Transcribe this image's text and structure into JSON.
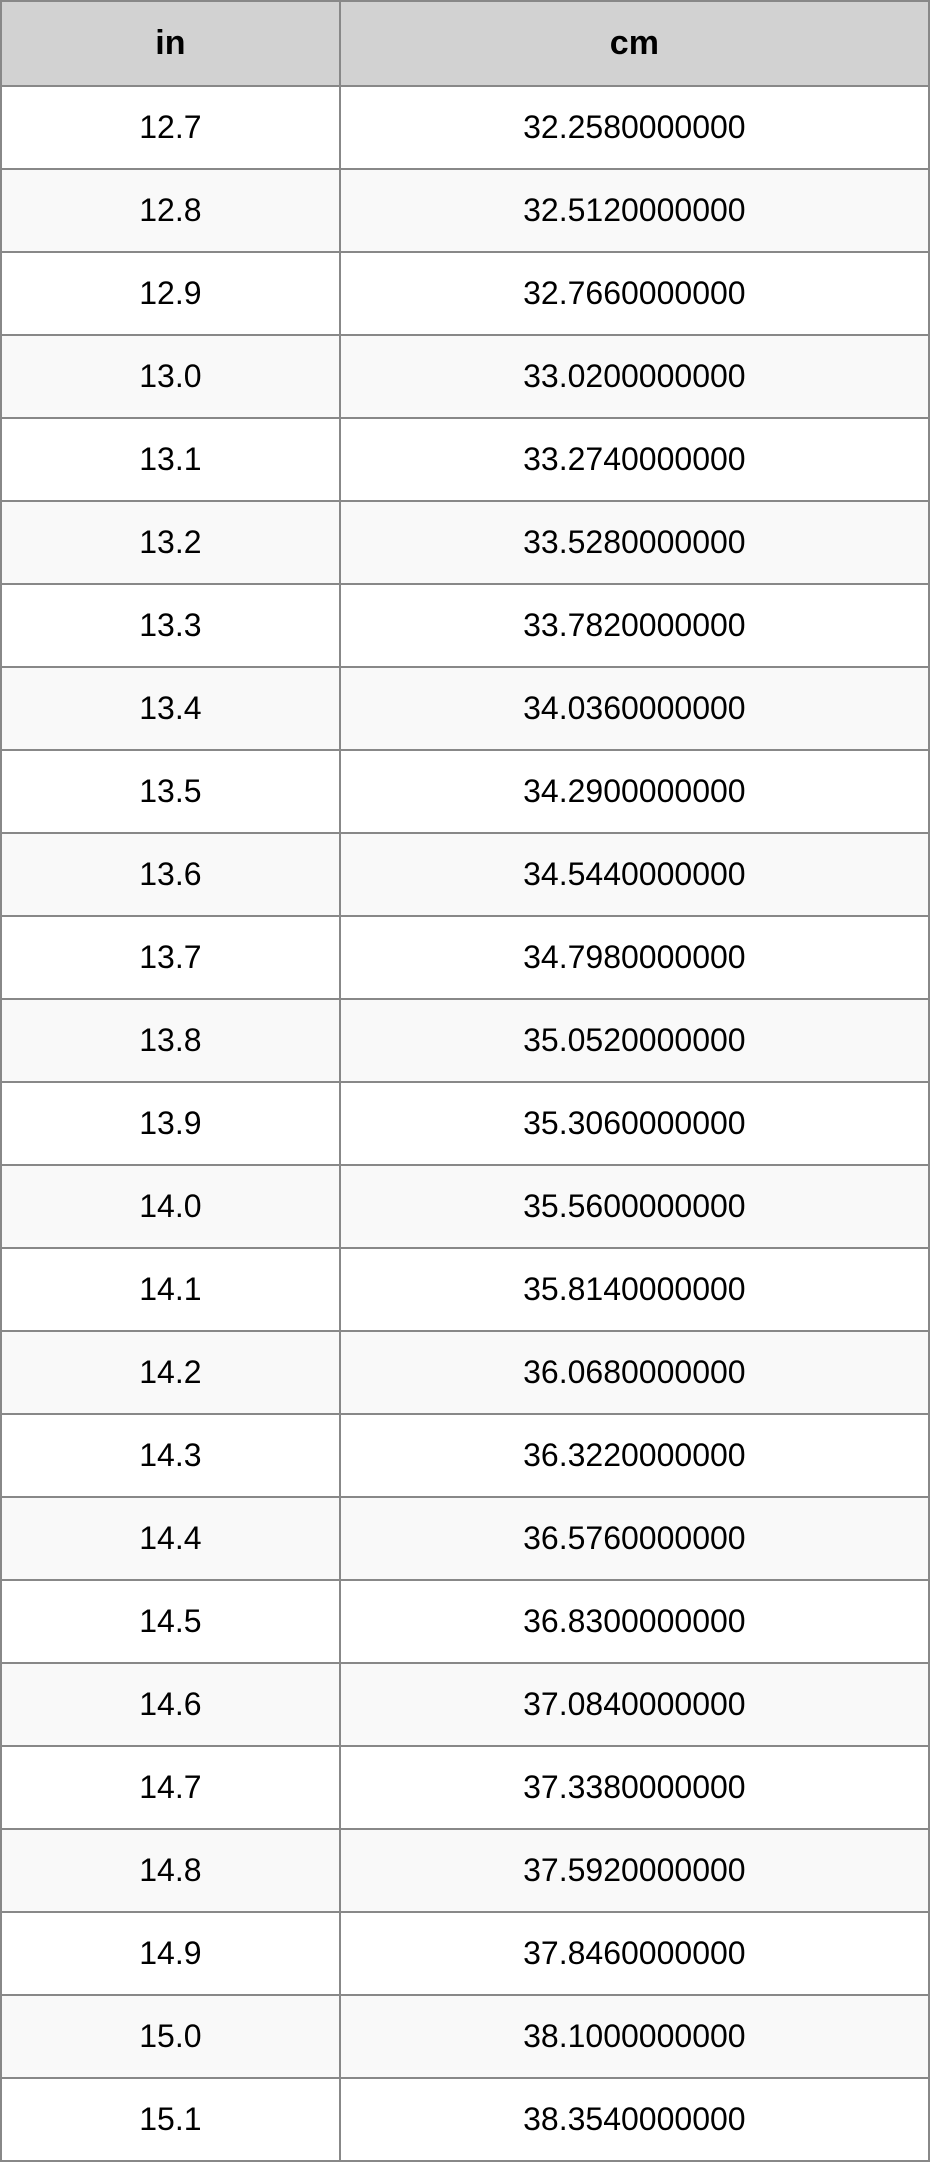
{
  "conversion_table": {
    "type": "table",
    "columns": [
      {
        "header": "in",
        "width_pct": 36.5,
        "align": "center"
      },
      {
        "header": "cm",
        "width_pct": 63.5,
        "align": "center"
      }
    ],
    "header_bg": "#d2d2d2",
    "header_font_size": 34,
    "header_font_weight": "bold",
    "body_font_size": 32,
    "text_color": "#000000",
    "border_color": "#888888",
    "border_width": 2,
    "row_bg_odd": "#ffffff",
    "row_bg_even": "#f9f9f9",
    "cell_padding_v": 22,
    "rows": [
      {
        "in": "12.7",
        "cm": "32.2580000000"
      },
      {
        "in": "12.8",
        "cm": "32.5120000000"
      },
      {
        "in": "12.9",
        "cm": "32.7660000000"
      },
      {
        "in": "13.0",
        "cm": "33.0200000000"
      },
      {
        "in": "13.1",
        "cm": "33.2740000000"
      },
      {
        "in": "13.2",
        "cm": "33.5280000000"
      },
      {
        "in": "13.3",
        "cm": "33.7820000000"
      },
      {
        "in": "13.4",
        "cm": "34.0360000000"
      },
      {
        "in": "13.5",
        "cm": "34.2900000000"
      },
      {
        "in": "13.6",
        "cm": "34.5440000000"
      },
      {
        "in": "13.7",
        "cm": "34.7980000000"
      },
      {
        "in": "13.8",
        "cm": "35.0520000000"
      },
      {
        "in": "13.9",
        "cm": "35.3060000000"
      },
      {
        "in": "14.0",
        "cm": "35.5600000000"
      },
      {
        "in": "14.1",
        "cm": "35.8140000000"
      },
      {
        "in": "14.2",
        "cm": "36.0680000000"
      },
      {
        "in": "14.3",
        "cm": "36.3220000000"
      },
      {
        "in": "14.4",
        "cm": "36.5760000000"
      },
      {
        "in": "14.5",
        "cm": "36.8300000000"
      },
      {
        "in": "14.6",
        "cm": "37.0840000000"
      },
      {
        "in": "14.7",
        "cm": "37.3380000000"
      },
      {
        "in": "14.8",
        "cm": "37.5920000000"
      },
      {
        "in": "14.9",
        "cm": "37.8460000000"
      },
      {
        "in": "15.0",
        "cm": "38.1000000000"
      },
      {
        "in": "15.1",
        "cm": "38.3540000000"
      }
    ]
  }
}
